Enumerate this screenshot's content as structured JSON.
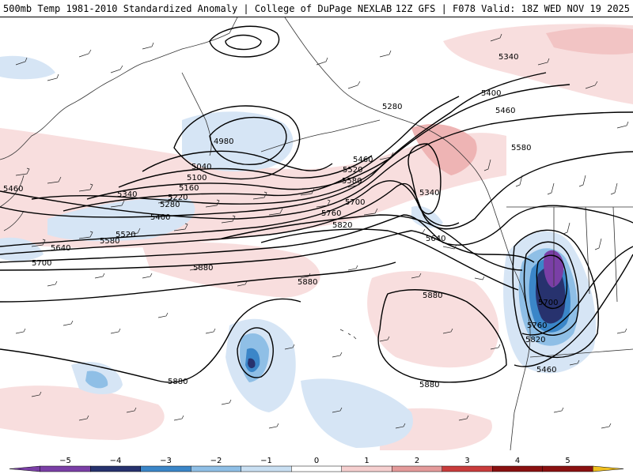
{
  "header": {
    "left_title": "500mb Temp 1981-2010 Standardized Anomaly | College of DuPage NEXLAB",
    "right_title": "12Z GFS | F078 Valid: 18Z WED NOV 19 2025"
  },
  "contour_labels": [
    {
      "text": "4980"
    },
    {
      "text": "5040"
    },
    {
      "text": "5100"
    },
    {
      "text": "5160"
    },
    {
      "text": "5220"
    },
    {
      "text": "5280"
    },
    {
      "text": "5340"
    },
    {
      "text": "5400"
    },
    {
      "text": "5460"
    },
    {
      "text": "5520"
    },
    {
      "text": "5580"
    },
    {
      "text": "5640"
    },
    {
      "text": "5700"
    },
    {
      "text": "5880"
    },
    {
      "text": "5880"
    },
    {
      "text": "5880"
    },
    {
      "text": "5880"
    },
    {
      "text": "5880"
    },
    {
      "text": "5340"
    },
    {
      "text": "5400"
    },
    {
      "text": "5460"
    },
    {
      "text": "5280"
    },
    {
      "text": "5580"
    },
    {
      "text": "5460"
    },
    {
      "text": "5520"
    },
    {
      "text": "5580"
    },
    {
      "text": "5700"
    },
    {
      "text": "5760"
    },
    {
      "text": "5820"
    },
    {
      "text": "5640"
    },
    {
      "text": "5340"
    },
    {
      "text": "5700"
    },
    {
      "text": "5760"
    },
    {
      "text": "5820"
    },
    {
      "text": "5460"
    }
  ],
  "colorbar": {
    "ticks": [
      "−5",
      "−4",
      "−3",
      "−2",
      "−1",
      "0",
      "1",
      "2",
      "3",
      "4",
      "5"
    ],
    "colors": [
      "#7a3fa6",
      "#27326e",
      "#3b86c8",
      "#8fbfe6",
      "#c9dff2",
      "#ffffff",
      "#ffffff",
      "#f5cfcf",
      "#e49a9a",
      "#c93c3c",
      "#8a1111",
      "#f0c020"
    ]
  },
  "colors": {
    "neg_light": "#d6e5f5",
    "neg_mid": "#a8ccec",
    "neg_strong": "#3b86c8",
    "neg_dark": "#27326e",
    "neg_purple": "#7a3fa6",
    "pos_light": "#f8dede",
    "pos_mid": "#eeb4b4"
  }
}
